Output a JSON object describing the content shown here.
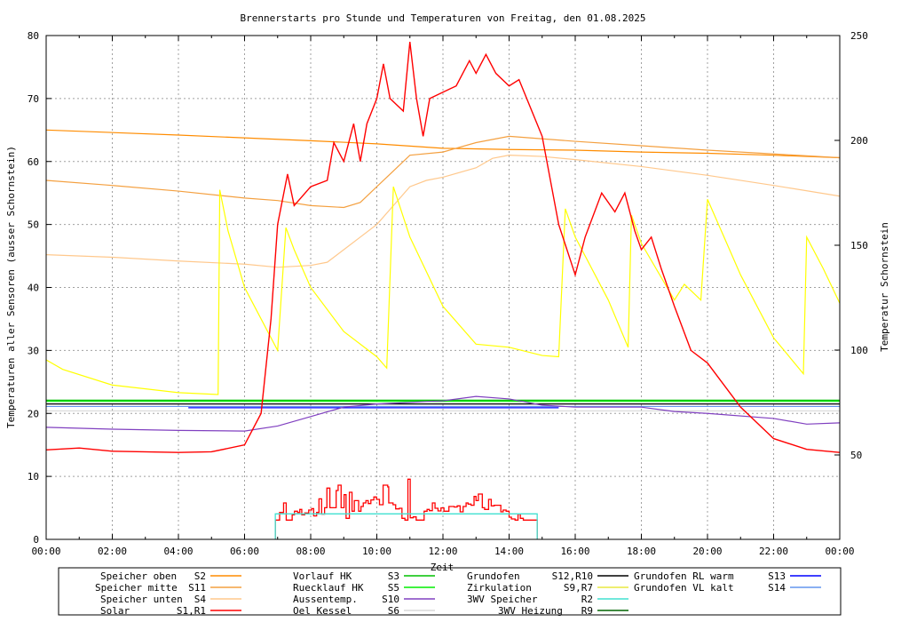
{
  "chart_data": {
    "type": "line",
    "title": "Brennerstarts pro Stunde und Temperaturen von Freitag, den 01.08.2025",
    "xlabel": "Zeit",
    "ylabel": "Temperaturen aller Sensoren (ausser Schornstein)",
    "y2label": "Temperatur Schornstein",
    "xlim": [
      0,
      24
    ],
    "ylim": [
      0,
      80
    ],
    "y2lim": [
      9.75,
      250
    ],
    "grid": true,
    "legend_placement": "bottom",
    "x_tick_labels": [
      "00:00",
      "02:00",
      "04:00",
      "06:00",
      "08:00",
      "10:00",
      "12:00",
      "14:00",
      "16:00",
      "18:00",
      "20:00",
      "22:00",
      "00:00"
    ],
    "y_ticks": [
      0,
      10,
      20,
      30,
      40,
      50,
      60,
      70,
      80
    ],
    "y2_ticks": [
      50,
      100,
      150,
      200,
      250
    ],
    "y2_color": "#ff40ff",
    "legend": [
      {
        "label": "Speicher oben",
        "code": "S2",
        "color": "#ff8c00"
      },
      {
        "label": "Speicher mitte",
        "code": "S11",
        "color": "#f4a040"
      },
      {
        "label": "Speicher unten",
        "code": "S4",
        "color": "#ffc88c"
      },
      {
        "label": "Solar",
        "code": "S1,R1",
        "color": "#ff0000"
      },
      {
        "label": "Vorlauf HK",
        "code": "S3",
        "color": "#00c000"
      },
      {
        "label": "Ruecklauf HK",
        "code": "S5",
        "color": "#00ee00"
      },
      {
        "label": "Aussentemp.",
        "code": "S10",
        "color": "#8040c0"
      },
      {
        "label": "Oel Kessel",
        "code": "S6",
        "color": "#d8d8d8"
      },
      {
        "label": "Grundofen",
        "code": "S12,R10",
        "color": "#000000"
      },
      {
        "label": "Zirkulation",
        "code": "S9,R7",
        "color": "#e8e840"
      },
      {
        "label": "3WV Speicher",
        "code": "R2",
        "color": "#40e0d0"
      },
      {
        "label": "3WV Heizung",
        "code": "R9",
        "color": "#006400"
      },
      {
        "label": "Grundofen RL warm",
        "code": "S13",
        "color": "#0000ff"
      },
      {
        "label": "Grundofen VL kalt",
        "code": "S14",
        "color": "#6495ed"
      }
    ],
    "series": [
      {
        "name": "Speicher oben S2",
        "color": "#ff8c00",
        "x": [
          0,
          4,
          8,
          10,
          12,
          14,
          16,
          18,
          20,
          22,
          24
        ],
        "y": [
          65,
          64.2,
          63.3,
          62.8,
          62.1,
          61.9,
          61.8,
          61.5,
          61.3,
          61,
          60.6
        ]
      },
      {
        "name": "Speicher mitte S11",
        "color": "#f4a040",
        "x": [
          0,
          2,
          4,
          6,
          7,
          8,
          9,
          9.5,
          10,
          10.5,
          11,
          12,
          13,
          14,
          16,
          18,
          20,
          22,
          24
        ],
        "y": [
          57,
          56.2,
          55.3,
          54.2,
          53.8,
          53,
          52.7,
          53.5,
          56,
          58.5,
          61,
          61.5,
          63,
          64,
          63.2,
          62.5,
          61.8,
          61.2,
          60.6
        ]
      },
      {
        "name": "Speicher unten S4",
        "color": "#ffc88c",
        "x": [
          0,
          2,
          4,
          6,
          7,
          8,
          8.5,
          9,
          9.5,
          10,
          10.5,
          11,
          11.5,
          12,
          13,
          13.5,
          14,
          15,
          16,
          18,
          20,
          22,
          24
        ],
        "y": [
          45.2,
          44.8,
          44.2,
          43.7,
          43.2,
          43.5,
          44,
          46,
          48,
          50,
          53,
          56,
          57,
          57.5,
          59,
          60.5,
          61,
          60.8,
          60.3,
          59.2,
          57.8,
          56.2,
          54.5
        ]
      },
      {
        "name": "Oel Kessel S6",
        "color": "#d8d8d8",
        "x": [
          0,
          24
        ],
        "y": [
          20.4,
          20.4
        ]
      },
      {
        "name": "Vorlauf HK S3",
        "color": "#00c000",
        "x": [
          0,
          24
        ],
        "y": [
          22.1,
          22.1
        ]
      },
      {
        "name": "Ruecklauf HK S5",
        "color": "#00ee00",
        "x": [
          0,
          24
        ],
        "y": [
          21.9,
          21.9
        ]
      },
      {
        "name": "Grundofen S12,R10",
        "color": "#000000",
        "x": [
          0,
          24
        ],
        "y": [
          21.5,
          21.5
        ]
      },
      {
        "name": "Grundofen VL kalt S14",
        "color": "#6495ed",
        "x": [
          0,
          24
        ],
        "y": [
          21.1,
          21.1
        ]
      },
      {
        "name": "Grundofen RL warm S13",
        "color": "#0000ff",
        "x": [
          4.3,
          15.5
        ],
        "y": [
          20.9,
          20.9
        ]
      },
      {
        "name": "Aussentemp. S10",
        "color": "#8040c0",
        "x": [
          0,
          2,
          4,
          6,
          7,
          8,
          9,
          10,
          12,
          13,
          14,
          15,
          16,
          18,
          19,
          20,
          22,
          23,
          24
        ],
        "y": [
          17.8,
          17.5,
          17.3,
          17.2,
          18,
          19.5,
          21,
          21.5,
          22,
          22.7,
          22.3,
          21.3,
          21,
          21,
          20.3,
          20,
          19.2,
          18.3,
          18.5
        ]
      },
      {
        "name": "Zirkulation S9,R7",
        "color": "#ffff00",
        "x": [
          0,
          0.5,
          2,
          4,
          5.2,
          5.25,
          5.5,
          6,
          6.5,
          7,
          7.25,
          7.5,
          8,
          9,
          10,
          10.3,
          10.5,
          11,
          12,
          13,
          14,
          15,
          15.5,
          15.7,
          16,
          17,
          17.6,
          17.7,
          18,
          19,
          19.3,
          19.8,
          20,
          20.5,
          21,
          22,
          22.9,
          23,
          23.5,
          24
        ],
        "y": [
          28.5,
          27,
          24.5,
          23.3,
          23,
          55.5,
          49,
          40,
          35,
          30,
          49.5,
          46,
          40,
          33,
          29,
          27.2,
          56,
          48,
          37,
          31,
          30.5,
          29.2,
          29,
          52.5,
          48,
          38,
          30.5,
          51.5,
          47,
          38,
          40.5,
          38,
          54,
          48,
          42,
          32,
          26.3,
          48,
          43,
          37.5
        ]
      },
      {
        "name": "Solar S1",
        "color": "#ff0000",
        "x": [
          0,
          1,
          2,
          4,
          5,
          6,
          6.5,
          6.8,
          7,
          7.3,
          7.5,
          8,
          8.5,
          8.7,
          9,
          9.3,
          9.5,
          9.7,
          10,
          10.2,
          10.4,
          10.8,
          11,
          11.2,
          11.4,
          11.6,
          12,
          12.4,
          12.8,
          13,
          13.3,
          13.6,
          14,
          14.3,
          15,
          15.5,
          16,
          16.3,
          16.8,
          17.2,
          17.5,
          17.8,
          18,
          18.3,
          18.6,
          19,
          19.5,
          20,
          21,
          22,
          23,
          24
        ],
        "y": [
          14.2,
          14.5,
          14,
          13.8,
          13.9,
          15,
          20,
          35,
          50,
          58,
          53,
          56,
          57,
          63,
          60,
          66,
          60,
          66,
          70,
          75.5,
          70,
          68,
          79,
          70,
          64,
          70,
          71,
          72,
          76,
          74,
          77,
          74,
          72,
          73,
          64,
          50,
          42,
          48,
          55,
          52,
          55,
          49,
          46,
          48,
          43,
          37,
          30,
          28,
          21,
          16,
          14.3,
          13.8
        ]
      }
    ],
    "steps": [
      {
        "name": "Solar R1 Brennerstarts",
        "color": "#ff0000",
        "end": 14.85,
        "x": [
          6.93,
          7.06,
          7.18,
          7.26,
          7.44,
          7.51,
          7.6,
          7.67,
          7.73,
          7.82,
          7.94,
          8.03,
          8.09,
          8.18,
          8.25,
          8.33,
          8.42,
          8.49,
          8.58,
          8.77,
          8.83,
          8.92,
          9.01,
          9.07,
          9.17,
          9.25,
          9.32,
          9.45,
          9.52,
          9.59,
          9.67,
          9.74,
          9.82,
          9.91,
          9.99,
          10.08,
          10.19,
          10.33,
          10.36,
          10.49,
          10.57,
          10.68,
          10.76,
          10.85,
          10.94,
          11.01,
          11.1,
          11.19,
          11.43,
          11.52,
          11.59,
          11.68,
          11.76,
          11.85,
          11.94,
          12.03,
          12.18,
          12.34,
          12.43,
          12.52,
          12.61,
          12.7,
          12.76,
          12.85,
          12.94,
          13.0,
          13.07,
          13.19,
          13.26,
          13.38,
          13.46,
          13.55,
          13.75,
          13.82,
          13.91,
          14.0,
          14.07,
          14.18,
          14.27,
          14.34,
          14.43
        ],
        "y": [
          3.06,
          4.28,
          5.79,
          3.06,
          3.9,
          4.47,
          4.28,
          4.75,
          3.9,
          4.19,
          4.66,
          4.89,
          3.72,
          4.28,
          6.44,
          4.0,
          5.03,
          8.14,
          5.03,
          7.76,
          8.61,
          5.03,
          7.1,
          3.34,
          7.48,
          4.47,
          6.16,
          4.47,
          5.22,
          5.79,
          6.16,
          5.69,
          6.26,
          6.73,
          6.35,
          5.5,
          8.61,
          8.33,
          5.79,
          5.5,
          4.84,
          4.94,
          3.34,
          3.06,
          9.55,
          3.43,
          3.57,
          3.06,
          4.47,
          4.75,
          4.56,
          5.79,
          4.94,
          4.52,
          4.99,
          4.47,
          5.22,
          5.13,
          5.32,
          4.37,
          5.22,
          5.79,
          5.6,
          5.41,
          6.82,
          6.16,
          7.2,
          5.03,
          4.75,
          6.35,
          5.32,
          5.41,
          4.37,
          4.66,
          4.47,
          3.53,
          3.25,
          3.06,
          4.0,
          3.34,
          3.06
        ]
      },
      {
        "name": "3WV Speicher R2",
        "color": "#40e0d0",
        "end": 14.85,
        "x": [
          6.93
        ],
        "y": [
          4.05
        ]
      }
    ]
  }
}
